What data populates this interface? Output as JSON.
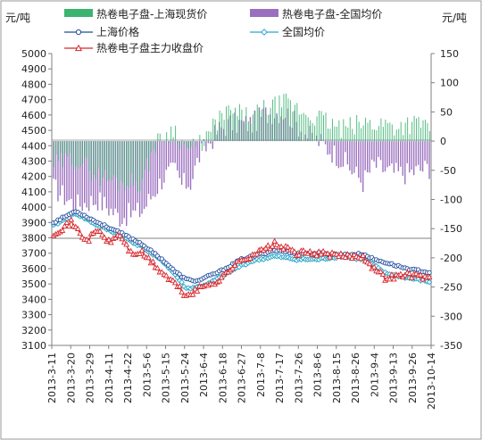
{
  "chart_data": {
    "type": "combo",
    "left_unit": "元/吨",
    "right_unit": "元/吨",
    "left_axis": {
      "min": 3100,
      "max": 5000,
      "step": 100
    },
    "right_axis": {
      "min": -350,
      "max": 150,
      "step": 50
    },
    "x_dates": [
      "2013-3-11",
      "2013-3-20",
      "2013-3-29",
      "2013-4-11",
      "2013-4-22",
      "2013-5-6",
      "2013-5-15",
      "2013-5-24",
      "2013-6-4",
      "2013-6-18",
      "2013-6-27",
      "2013-7-8",
      "2013-7-17",
      "2013-7-26",
      "2013-8-6",
      "2013-8-15",
      "2013-8-26",
      "2013-9-4",
      "2013-9-13",
      "2013-9-26",
      "2013-10-14"
    ],
    "legend": {
      "bar_sh": "热卷电子盘-上海现货价",
      "bar_nat": "热卷电子盘-全国均价",
      "line_sh": "上海价格",
      "line_nat": "全国均价",
      "line_main": "热卷电子盘主力收盘价"
    },
    "colors": {
      "bar_sh": "#3cb371",
      "bar_nat": "#9b6fbf",
      "line_sh": "#1f4e9c",
      "line_nat": "#2aa7c9",
      "line_main": "#d8262c"
    },
    "series_anchors": {
      "shanghai_price": [
        [
          0,
          3900
        ],
        [
          10,
          3975
        ],
        [
          20,
          3900
        ],
        [
          30,
          3835
        ],
        [
          40,
          3760
        ],
        [
          50,
          3650
        ],
        [
          55,
          3580
        ],
        [
          60,
          3530
        ],
        [
          65,
          3520
        ],
        [
          70,
          3550
        ],
        [
          75,
          3580
        ],
        [
          80,
          3620
        ],
        [
          85,
          3660
        ],
        [
          90,
          3680
        ],
        [
          100,
          3720
        ],
        [
          110,
          3700
        ],
        [
          120,
          3700
        ],
        [
          130,
          3690
        ],
        [
          140,
          3695
        ],
        [
          145,
          3660
        ],
        [
          150,
          3640
        ],
        [
          160,
          3600
        ],
        [
          170,
          3575
        ]
      ],
      "national_avg": [
        [
          0,
          3880
        ],
        [
          10,
          3960
        ],
        [
          20,
          3880
        ],
        [
          30,
          3820
        ],
        [
          40,
          3740
        ],
        [
          50,
          3640
        ],
        [
          55,
          3560
        ],
        [
          60,
          3470
        ],
        [
          65,
          3480
        ],
        [
          70,
          3500
        ],
        [
          75,
          3540
        ],
        [
          80,
          3580
        ],
        [
          85,
          3620
        ],
        [
          90,
          3650
        ],
        [
          100,
          3680
        ],
        [
          110,
          3660
        ],
        [
          120,
          3660
        ],
        [
          130,
          3680
        ],
        [
          140,
          3660
        ],
        [
          145,
          3620
        ],
        [
          150,
          3570
        ],
        [
          160,
          3540
        ],
        [
          170,
          3515
        ]
      ],
      "main_close": [
        [
          0,
          3830
        ],
        [
          8,
          3900
        ],
        [
          15,
          3780
        ],
        [
          20,
          3850
        ],
        [
          25,
          3770
        ],
        [
          30,
          3820
        ],
        [
          35,
          3700
        ],
        [
          40,
          3700
        ],
        [
          50,
          3560
        ],
        [
          55,
          3500
        ],
        [
          60,
          3420
        ],
        [
          65,
          3460
        ],
        [
          70,
          3500
        ],
        [
          75,
          3520
        ],
        [
          80,
          3600
        ],
        [
          85,
          3650
        ],
        [
          90,
          3690
        ],
        [
          95,
          3720
        ],
        [
          100,
          3760
        ],
        [
          110,
          3700
        ],
        [
          120,
          3700
        ],
        [
          130,
          3680
        ],
        [
          140,
          3680
        ],
        [
          145,
          3600
        ],
        [
          150,
          3540
        ],
        [
          160,
          3560
        ],
        [
          170,
          3540
        ]
      ],
      "bar_shanghai_spot": [
        [
          0,
          -40
        ],
        [
          10,
          -30
        ],
        [
          20,
          -60
        ],
        [
          30,
          -70
        ],
        [
          40,
          -70
        ],
        [
          45,
          -10
        ],
        [
          50,
          10
        ],
        [
          55,
          20
        ],
        [
          58,
          -5
        ],
        [
          62,
          -15
        ],
        [
          66,
          -5
        ],
        [
          70,
          10
        ],
        [
          75,
          40
        ],
        [
          80,
          50
        ],
        [
          85,
          45
        ],
        [
          90,
          40
        ],
        [
          95,
          55
        ],
        [
          100,
          60
        ],
        [
          105,
          65
        ],
        [
          110,
          55
        ],
        [
          115,
          45
        ],
        [
          120,
          40
        ],
        [
          125,
          30
        ],
        [
          130,
          20
        ],
        [
          140,
          30
        ],
        [
          150,
          30
        ],
        [
          155,
          25
        ],
        [
          160,
          30
        ],
        [
          170,
          30
        ]
      ],
      "bar_national_avg": [
        [
          0,
          -80
        ],
        [
          10,
          -110
        ],
        [
          20,
          -100
        ],
        [
          30,
          -130
        ],
        [
          40,
          -120
        ],
        [
          45,
          -90
        ],
        [
          50,
          -60
        ],
        [
          55,
          -50
        ],
        [
          58,
          -75
        ],
        [
          62,
          -70
        ],
        [
          66,
          -25
        ],
        [
          70,
          -5
        ],
        [
          75,
          20
        ],
        [
          80,
          30
        ],
        [
          85,
          30
        ],
        [
          90,
          30
        ],
        [
          95,
          45
        ],
        [
          100,
          50
        ],
        [
          105,
          50
        ],
        [
          110,
          30
        ],
        [
          115,
          10
        ],
        [
          120,
          0
        ],
        [
          125,
          -15
        ],
        [
          130,
          -30
        ],
        [
          140,
          -70
        ],
        [
          145,
          -40
        ],
        [
          150,
          -50
        ],
        [
          155,
          -55
        ],
        [
          160,
          -55
        ],
        [
          170,
          -45
        ]
      ]
    }
  }
}
